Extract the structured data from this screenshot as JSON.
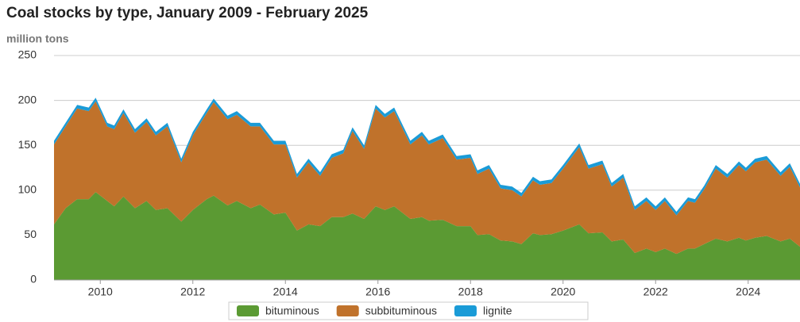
{
  "chart_data": {
    "type": "stacked_area",
    "title": "Coal stocks by type, January 2009 - February 2025",
    "subtitle": "million tons",
    "x": [
      2009.0,
      2009.25,
      2009.5,
      2009.75,
      2009.9,
      2010.15,
      2010.3,
      2010.5,
      2010.75,
      2011.0,
      2011.2,
      2011.45,
      2011.75,
      2012.0,
      2012.3,
      2012.45,
      2012.75,
      2012.95,
      2013.25,
      2013.45,
      2013.75,
      2014.0,
      2014.25,
      2014.5,
      2014.75,
      2015.0,
      2015.25,
      2015.45,
      2015.7,
      2015.95,
      2016.15,
      2016.35,
      2016.7,
      2016.95,
      2017.1,
      2017.4,
      2017.7,
      2018.0,
      2018.15,
      2018.4,
      2018.65,
      2018.9,
      2019.1,
      2019.35,
      2019.5,
      2019.75,
      2020.0,
      2020.35,
      2020.55,
      2020.85,
      2021.05,
      2021.3,
      2021.55,
      2021.8,
      2022.0,
      2022.2,
      2022.45,
      2022.7,
      2022.85,
      2023.05,
      2023.3,
      2023.55,
      2023.8,
      2023.95,
      2024.15,
      2024.4,
      2024.7,
      2024.9,
      2025.12
    ],
    "series": [
      {
        "name": "bituminous",
        "color": "#5b9a33",
        "values": [
          62,
          80,
          90,
          90,
          98,
          88,
          82,
          93,
          80,
          88,
          78,
          80,
          65,
          78,
          90,
          94,
          83,
          88,
          80,
          84,
          73,
          75,
          55,
          62,
          60,
          70,
          70,
          74,
          68,
          82,
          78,
          82,
          68,
          70,
          66,
          67,
          60,
          60,
          50,
          51,
          44,
          43,
          40,
          52,
          50,
          51,
          55,
          62,
          52,
          53,
          43,
          45,
          30,
          35,
          31,
          35,
          29,
          35,
          35,
          40,
          46,
          43,
          47,
          44,
          47,
          49,
          43,
          46,
          37
        ]
      },
      {
        "name": "subbituminous",
        "color": "#c0722b",
        "values": [
          89,
          91,
          101,
          98,
          101,
          83,
          86,
          93,
          84,
          88,
          83,
          91,
          66,
          83,
          96,
          104,
          96,
          96,
          91,
          87,
          78,
          76,
          59,
          69,
          56,
          66,
          71,
          92,
          78,
          109,
          103,
          106,
          83,
          91,
          85,
          91,
          74,
          76,
          68,
          73,
          58,
          57,
          53,
          59,
          56,
          57,
          69,
          86,
          72,
          76,
          61,
          69,
          48,
          53,
          47,
          53,
          43,
          53,
          51,
          61,
          78,
          71,
          81,
          77,
          84,
          85,
          73,
          80,
          66
        ]
      },
      {
        "name": "lignite",
        "color": "#1a9bd7",
        "values": [
          4,
          4,
          4,
          4,
          4,
          4,
          4,
          4,
          4,
          4,
          4,
          4,
          4,
          4,
          4,
          4,
          4,
          4,
          4,
          4,
          4,
          4,
          4,
          4,
          4,
          4,
          4,
          4,
          4,
          4,
          4,
          4,
          4,
          4,
          4,
          4,
          4,
          4,
          4,
          4,
          4,
          4,
          4,
          4,
          4,
          4,
          4,
          4,
          4,
          4,
          4,
          4,
          4,
          4,
          4,
          4,
          4,
          4,
          4,
          4,
          4,
          4,
          4,
          4,
          4,
          4,
          4,
          4,
          4
        ]
      }
    ],
    "xlim": [
      2009.0,
      2025.12
    ],
    "xticks": [
      2010,
      2012,
      2014,
      2016,
      2018,
      2020,
      2022,
      2024
    ],
    "ylim": [
      0,
      250
    ],
    "yticks": [
      0,
      50,
      100,
      150,
      200,
      250
    ],
    "grid": true,
    "legend": "bottom"
  }
}
